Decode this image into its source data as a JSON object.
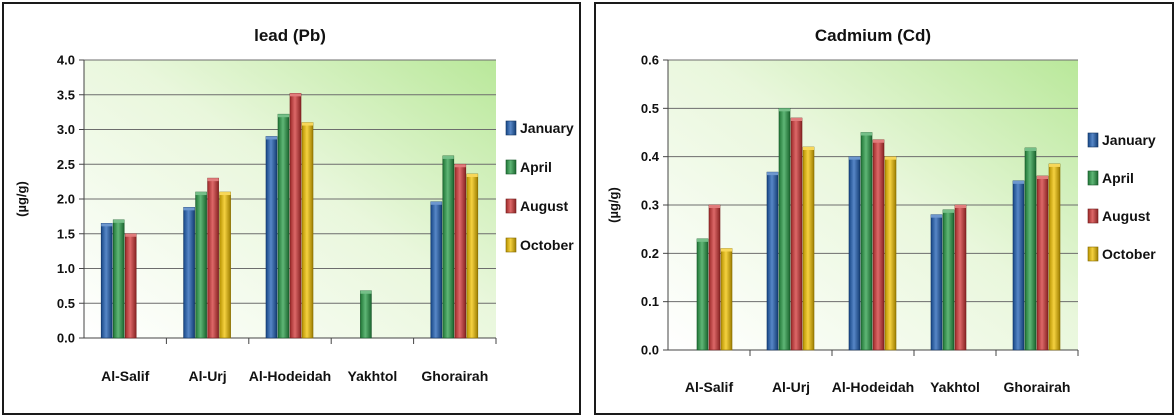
{
  "chart_data": [
    {
      "type": "bar",
      "title": "lead (Pb)",
      "xlabel": "",
      "ylabel": "(µg/g)",
      "ylim": [
        0,
        4.0
      ],
      "yticks": [
        "0.0",
        "0.5",
        "1.0",
        "1.5",
        "2.0",
        "2.5",
        "3.0",
        "3.5",
        "4.0"
      ],
      "grid": true,
      "legend_position": "right",
      "categories": [
        "Al-Salif",
        "Al-Urj",
        "Al-Hodeidah",
        "Yakhtol",
        "Ghorairah"
      ],
      "series": [
        {
          "name": "January",
          "color": "#1f5fb4",
          "values": [
            1.65,
            1.88,
            2.9,
            null,
            1.96
          ]
        },
        {
          "name": "April",
          "color": "#2a9d48",
          "values": [
            1.7,
            2.1,
            3.22,
            0.68,
            2.62
          ]
        },
        {
          "name": "August",
          "color": "#d13636",
          "values": [
            1.5,
            2.3,
            3.52,
            null,
            2.5
          ]
        },
        {
          "name": "October",
          "color": "#f2c200",
          "values": [
            null,
            2.1,
            3.1,
            null,
            2.36
          ]
        }
      ]
    },
    {
      "type": "bar",
      "title": "Cadmium (Cd)",
      "xlabel": "",
      "ylabel": "(µg/g)",
      "ylim": [
        0,
        0.6
      ],
      "yticks": [
        "0.0",
        "0.1",
        "0.2",
        "0.3",
        "0.4",
        "0.5",
        "0.6"
      ],
      "grid": true,
      "legend_position": "right",
      "categories": [
        "Al-Salif",
        "Al-Urj",
        "Al-Hodeidah",
        "Yakhtol",
        "Ghorairah"
      ],
      "series": [
        {
          "name": "January",
          "color": "#1f5fb4",
          "values": [
            null,
            0.368,
            0.4,
            0.28,
            0.35
          ]
        },
        {
          "name": "April",
          "color": "#2a9d48",
          "values": [
            0.23,
            0.5,
            0.45,
            0.29,
            0.418
          ]
        },
        {
          "name": "August",
          "color": "#d13636",
          "values": [
            0.3,
            0.48,
            0.435,
            0.3,
            0.36
          ]
        },
        {
          "name": "October",
          "color": "#f2c200",
          "values": [
            0.21,
            0.42,
            0.4,
            null,
            0.385
          ]
        }
      ]
    }
  ]
}
